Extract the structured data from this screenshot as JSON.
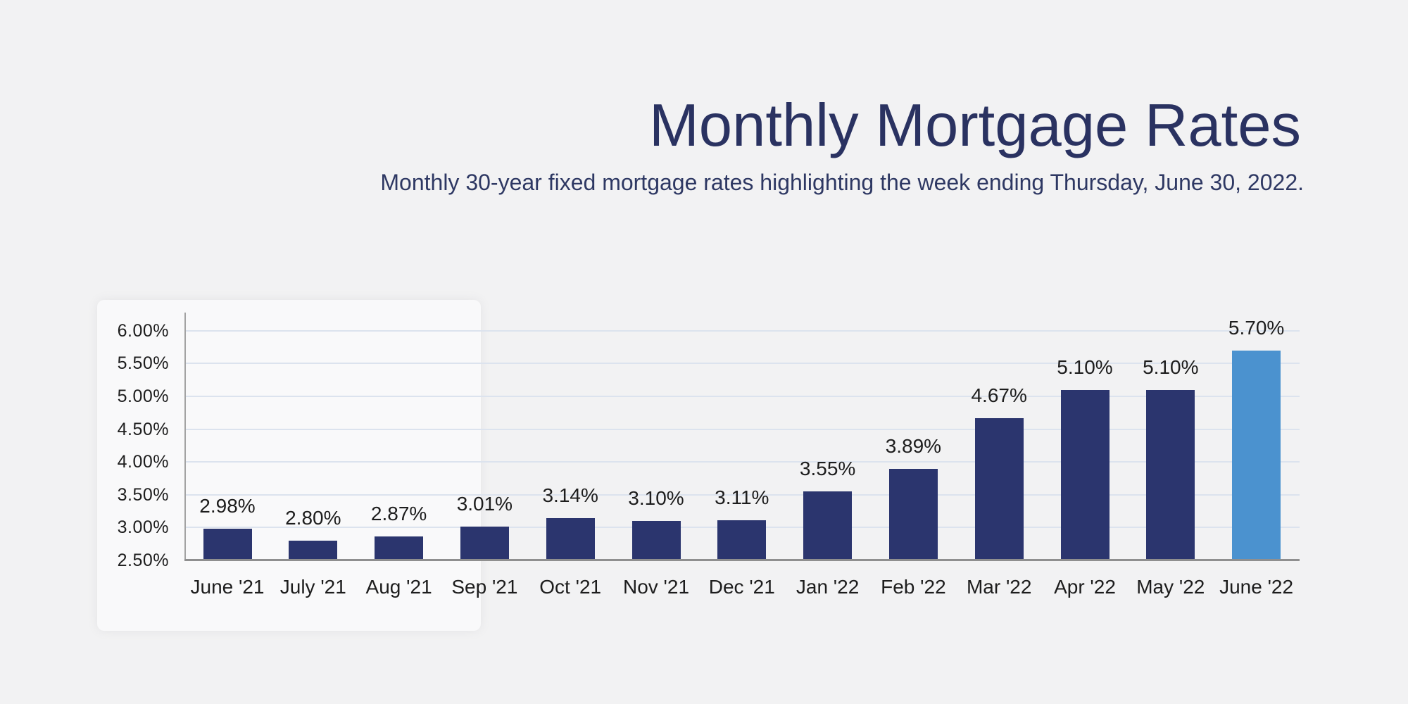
{
  "page": {
    "background_color": "#f2f2f3"
  },
  "header": {
    "title": "Monthly Mortgage Rates",
    "subtitle": "Monthly 30-year fixed mortgage rates highlighting the week ending Thursday, June 30, 2022."
  },
  "chart_data": {
    "type": "bar",
    "title": "Monthly Mortgage Rates",
    "subtitle": "Monthly 30-year fixed mortgage rates highlighting the week ending Thursday, June 30, 2022.",
    "categories": [
      "June '21",
      "July '21",
      "Aug '21",
      "Sep '21",
      "Oct '21",
      "Nov '21",
      "Dec '21",
      "Jan '22",
      "Feb '22",
      "Mar '22",
      "Apr '22",
      "May '22",
      "June '22"
    ],
    "values": [
      2.98,
      2.8,
      2.87,
      3.01,
      3.14,
      3.1,
      3.11,
      3.55,
      3.89,
      4.67,
      5.1,
      5.1,
      5.7
    ],
    "value_labels": [
      "2.98%",
      "2.80%",
      "2.87%",
      "3.01%",
      "3.14%",
      "3.10%",
      "3.11%",
      "3.55%",
      "3.89%",
      "4.67%",
      "5.10%",
      "5.10%",
      "5.70%"
    ],
    "highlight_index": 12,
    "ytick_values": [
      6.0,
      5.5,
      5.0,
      4.5,
      4.0,
      3.5,
      3.0,
      2.5
    ],
    "ytick_labels": [
      "6.00%",
      "5.50%",
      "5.00%",
      "4.50%",
      "4.00%",
      "3.50%",
      "3.00%",
      "2.50%"
    ],
    "ylim": [
      2.5,
      6.25
    ],
    "grid": true,
    "legend": false,
    "xlabel": "",
    "ylabel": "",
    "colors": {
      "bar": "#2b356e",
      "highlight_bar": "#4b92cf",
      "grid": "#dce3ee",
      "axis": "#8f8f8f",
      "text": "#1d1d1d",
      "title": "#2a3261"
    }
  }
}
